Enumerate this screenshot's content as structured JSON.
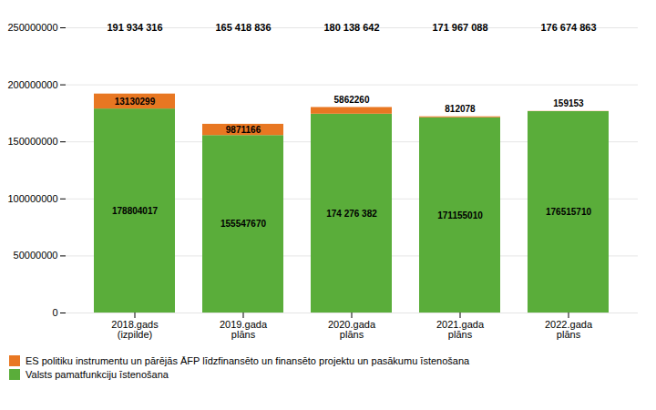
{
  "chart_data": {
    "type": "bar",
    "stacked": true,
    "categories": [
      "2018.gads\n(izpilde)",
      "2019.gada\nplāns",
      "2020.gada\nplāns",
      "2021.gada\nplāns",
      "2022.gada\nplāns"
    ],
    "series": [
      {
        "name": "Valsts pamatfunkciju īstenošana",
        "color": "#5aad3a",
        "values": [
          178804017,
          155547670,
          174276382,
          171155010,
          176515710
        ],
        "value_labels": [
          "178804017",
          "155547670",
          "174 276 382",
          "171155010",
          "176515710"
        ]
      },
      {
        "name": "ES politiku instrumentu un pārējās ĀFP līdzfinansēto un finansēto projektu un pasākumu īstenošana",
        "color": "#e87722",
        "values": [
          13130299,
          9871166,
          5862260,
          812078,
          159153
        ]
      }
    ],
    "total_labels": [
      "191 934 316",
      "165 418 836",
      "180 138 642",
      "171 967 088",
      "176 674 863"
    ],
    "data_labels": true,
    "ylim": [
      0,
      250000000
    ],
    "yticks": [
      0,
      50000000,
      100000000,
      150000000,
      200000000,
      250000000
    ],
    "grid": true,
    "legend": "lower left"
  }
}
